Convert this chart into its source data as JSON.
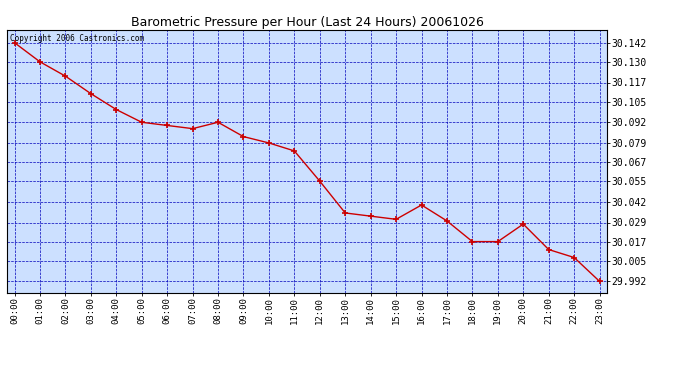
{
  "title": "Barometric Pressure per Hour (Last 24 Hours) 20061026",
  "copyright": "Copyright 2006 Castronics.com",
  "hours": [
    0,
    1,
    2,
    3,
    4,
    5,
    6,
    7,
    8,
    9,
    10,
    11,
    12,
    13,
    14,
    15,
    16,
    17,
    18,
    19,
    20,
    21,
    22,
    23
  ],
  "xlabels": [
    "00:00",
    "01:00",
    "02:00",
    "03:00",
    "04:00",
    "05:00",
    "06:00",
    "07:00",
    "08:00",
    "09:00",
    "10:00",
    "11:00",
    "12:00",
    "13:00",
    "14:00",
    "15:00",
    "16:00",
    "17:00",
    "18:00",
    "19:00",
    "20:00",
    "21:00",
    "22:00",
    "23:00"
  ],
  "pressure": [
    30.142,
    30.13,
    30.121,
    30.11,
    30.1,
    30.092,
    30.09,
    30.088,
    30.092,
    30.083,
    30.079,
    30.074,
    30.055,
    30.035,
    30.033,
    30.031,
    30.04,
    30.03,
    30.017,
    30.017,
    30.028,
    30.012,
    30.007,
    29.992
  ],
  "ylim_min": 29.985,
  "ylim_max": 30.15,
  "yticks": [
    30.142,
    30.13,
    30.117,
    30.105,
    30.092,
    30.079,
    30.067,
    30.055,
    30.042,
    30.029,
    30.017,
    30.005,
    29.992
  ],
  "line_color": "#cc0000",
  "marker_color": "#cc0000",
  "bg_color": "#ffffff",
  "plot_bg_color": "#cce0ff",
  "grid_color": "#0000bb",
  "title_color": "#000000",
  "border_color": "#000000"
}
